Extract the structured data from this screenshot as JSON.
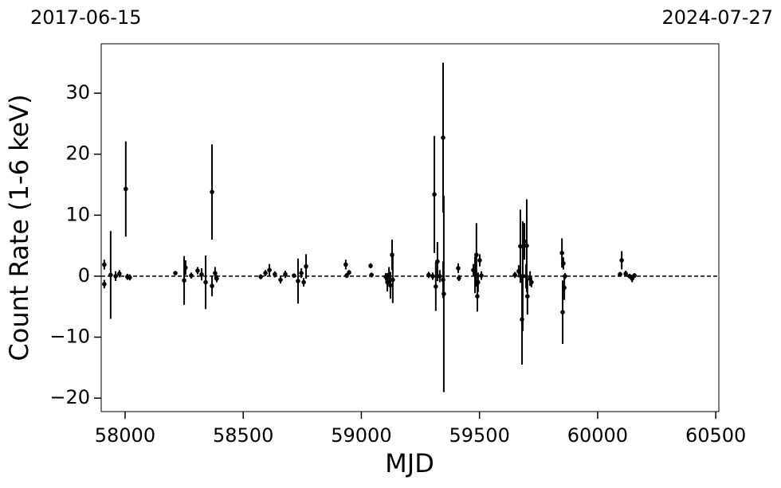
{
  "chart_data": {
    "type": "scatter",
    "xlabel": "MJD",
    "ylabel": "Count Rate (1-6 keV)",
    "top_left_label": "2017-06-15",
    "top_right_label": "2024-07-27",
    "xlim": [
      57899,
      60513
    ],
    "ylim": [
      -22.2,
      38.1
    ],
    "xticks": [
      58000,
      58500,
      59000,
      59500,
      60000,
      60500
    ],
    "yticks": [
      {
        "value": -20,
        "label": "−20"
      },
      {
        "value": -10,
        "label": "−10"
      },
      0,
      10,
      20,
      30
    ],
    "hline": 0,
    "series": [
      {
        "color": "#000000",
        "x": [
          57912,
          57912,
          57939,
          57960,
          57976,
          58003,
          58010,
          58020,
          58213,
          58250,
          58256,
          58280,
          58307,
          58324,
          58341,
          58368,
          58368,
          58381,
          58388,
          58574,
          58594,
          58611,
          58634,
          58658,
          58678,
          58715,
          58732,
          58746,
          58756,
          58766,
          58934,
          58938,
          58948,
          59039,
          59043,
          59103,
          59110,
          59117,
          59123,
          59130,
          59133,
          59285,
          59302,
          59309,
          59315,
          59322,
          59332,
          59346,
          59346,
          59349,
          59410,
          59413,
          59474,
          59481,
          59487,
          59491,
          59494,
          59501,
          59508,
          59650,
          59666,
          59673,
          59680,
          59683,
          59690,
          59697,
          59700,
          59703,
          59714,
          59720,
          59849,
          59852,
          59855,
          59859,
          59862,
          60095,
          60102,
          60119,
          60135,
          60146,
          60156
        ],
        "values": [
          1.9,
          -1.3,
          0.2,
          0,
          0.4,
          14.3,
          -0.1,
          -0.2,
          0.5,
          -0.7,
          1.4,
          0.1,
          0.9,
          0.3,
          -1,
          13.8,
          -1.6,
          0.5,
          -0.4,
          -0.1,
          0.5,
          1,
          0.3,
          -0.6,
          0.3,
          0.1,
          -0.8,
          0.5,
          -1,
          1.6,
          1.9,
          0.1,
          0.6,
          1.7,
          0.2,
          -0.1,
          -1,
          0.2,
          -1.5,
          3.5,
          -0.6,
          0.2,
          0,
          13.4,
          -1.7,
          2.4,
          0,
          22.7,
          -0.6,
          -2.9,
          1.3,
          -0.3,
          1,
          0.2,
          3.5,
          -3.3,
          -1,
          2.6,
          0.1,
          0.2,
          0.8,
          4.9,
          -7.1,
          0,
          5.7,
          0,
          5,
          -3.3,
          -0.4,
          -1,
          3.8,
          -5.9,
          2.1,
          -1.9,
          0,
          0.3,
          2.6,
          0.4,
          0,
          -0.4,
          0.1
        ],
        "errors": [
          0.8,
          0.7,
          7.2,
          0.8,
          0.6,
          7.8,
          0.5,
          0.5,
          0.3,
          4,
          1.2,
          0.5,
          0.6,
          1,
          4.4,
          7.8,
          1.7,
          1,
          0.6,
          0.4,
          0.5,
          1,
          0.5,
          0.6,
          0.6,
          0.3,
          3.7,
          0.8,
          0.7,
          2,
          0.8,
          0.4,
          0.4,
          0.4,
          0.4,
          0.6,
          1.5,
          1.3,
          2.2,
          2.5,
          3.8,
          0.5,
          0.6,
          9.6,
          4,
          3.2,
          1,
          12.3,
          3,
          16.1,
          0.8,
          0.5,
          1,
          3,
          5.2,
          2.5,
          1.6,
          1,
          0.7,
          0.5,
          1,
          6,
          7.4,
          9,
          3,
          2,
          7.6,
          3,
          1.2,
          0.8,
          2.4,
          5.2,
          1,
          2,
          0.5,
          0.4,
          1.5,
          0.5,
          0.4,
          0.6,
          0.4
        ]
      }
    ]
  }
}
